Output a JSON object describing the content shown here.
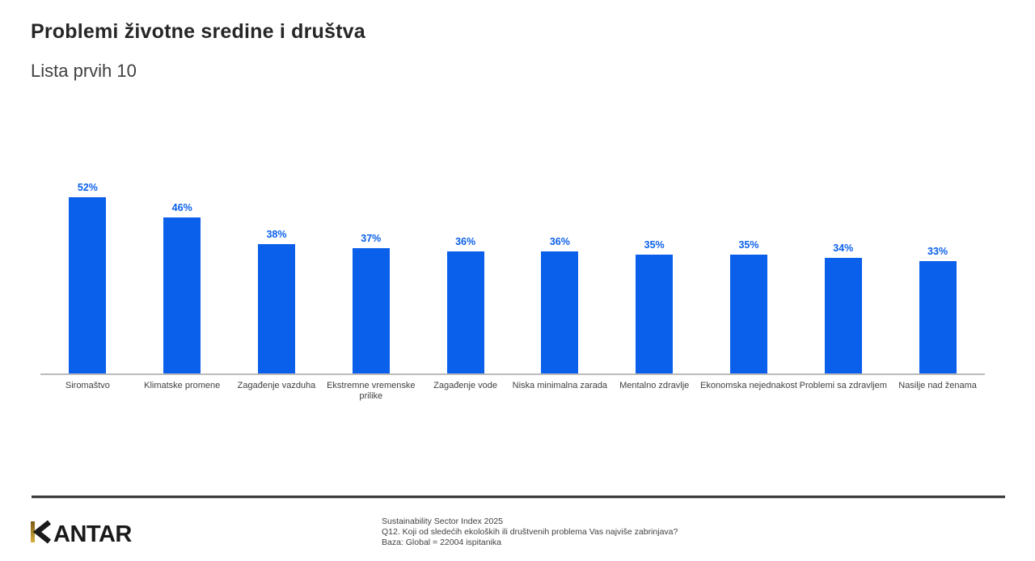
{
  "header": {
    "title": "Problemi životne sredine i društva",
    "subtitle": "Lista prvih 10"
  },
  "chart_data": {
    "type": "bar",
    "title": "Problemi životne sredine i društva",
    "subtitle": "Lista prvih 10",
    "categories": [
      "Siromaštvo",
      "Klimatske promene",
      "Zagađenje vazduha",
      "Ekstremne vremenske prilike",
      "Zagađenje vode",
      "Niska minimalna zarada",
      "Mentalno zdravlje",
      "Ekonomska nejednakost",
      "Problemi sa zdravljem",
      "Nasilje nad ženama"
    ],
    "values": [
      52,
      46,
      38,
      37,
      36,
      36,
      35,
      35,
      34,
      33
    ],
    "value_labels": [
      "52%",
      "46%",
      "38%",
      "37%",
      "36%",
      "36%",
      "35%",
      "35%",
      "34%",
      "33%"
    ],
    "xlabel": "",
    "ylabel": "",
    "ylim": [
      0,
      55
    ],
    "grid": false,
    "legend": false,
    "bar_color": "#0a5feb",
    "value_label_color": "#0a5feb",
    "axis_line_color": "#bcbcbc"
  },
  "footer": {
    "logo_text": "KANTAR",
    "logo_accent_color_top": "#7a5a14",
    "logo_accent_color_bottom": "#d9ae3c",
    "source_lines": [
      "Sustainability Sector Index 2025",
      "Q12. Koji od sledećih ekoloških ili društvenih problema Vas najviše zabrinjava?",
      "Baza: Global = 22004 ispitanika"
    ]
  }
}
